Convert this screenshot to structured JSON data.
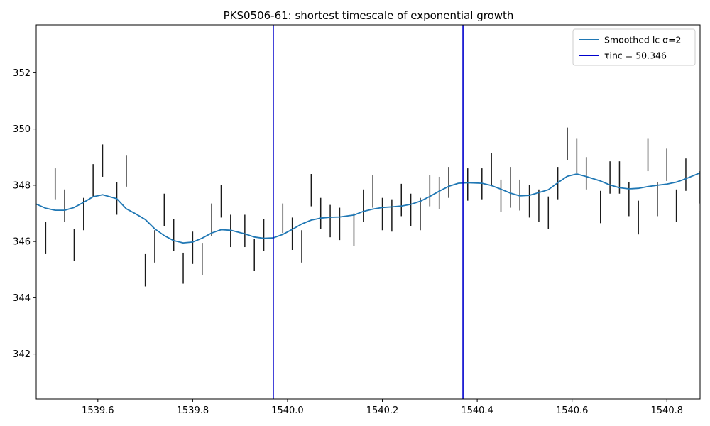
{
  "chart_data": {
    "type": "line",
    "title": "PKS0506-61: shortest timescale of exponential growth",
    "xlabel": "",
    "ylabel": "",
    "xlim": [
      1539.47,
      1540.87
    ],
    "ylim": [
      340.4,
      353.7
    ],
    "grid": false,
    "legend_position": "top-right",
    "x_ticks": [
      {
        "value": 1539.6,
        "label": "1539.6"
      },
      {
        "value": 1539.8,
        "label": "1539.8"
      },
      {
        "value": 1540.0,
        "label": "1540.0"
      },
      {
        "value": 1540.2,
        "label": "1540.2"
      },
      {
        "value": 1540.4,
        "label": "1540.4"
      },
      {
        "value": 1540.6,
        "label": "1540.6"
      },
      {
        "value": 1540.8,
        "label": "1540.8"
      }
    ],
    "y_ticks": [
      {
        "value": 342,
        "label": "342"
      },
      {
        "value": 344,
        "label": "344"
      },
      {
        "value": 346,
        "label": "346"
      },
      {
        "value": 348,
        "label": "348"
      },
      {
        "value": 350,
        "label": "350"
      },
      {
        "value": 352,
        "label": "352"
      }
    ],
    "legend": [
      {
        "label": "Smoothed lc σ=2",
        "color": "#1f77b4",
        "kind": "line"
      },
      {
        "label": "τinc = 50.346",
        "color": "#0000cd",
        "kind": "vline"
      }
    ],
    "smoothed_series": {
      "name": "Smoothed lc σ=2",
      "color": "#1f77b4",
      "x": [
        1539.47,
        1539.49,
        1539.51,
        1539.53,
        1539.55,
        1539.57,
        1539.59,
        1539.61,
        1539.64,
        1539.66,
        1539.68,
        1539.7,
        1539.72,
        1539.74,
        1539.76,
        1539.78,
        1539.8,
        1539.82,
        1539.84,
        1539.86,
        1539.88,
        1539.91,
        1539.93,
        1539.95,
        1539.97,
        1539.99,
        1540.01,
        1540.03,
        1540.05,
        1540.07,
        1540.09,
        1540.11,
        1540.14,
        1540.16,
        1540.18,
        1540.2,
        1540.22,
        1540.24,
        1540.26,
        1540.28,
        1540.3,
        1540.32,
        1540.34,
        1540.36,
        1540.38,
        1540.41,
        1540.43,
        1540.45,
        1540.47,
        1540.49,
        1540.51,
        1540.53,
        1540.55,
        1540.57,
        1540.59,
        1540.61,
        1540.63,
        1540.66,
        1540.68,
        1540.7,
        1540.72,
        1540.74,
        1540.76,
        1540.78,
        1540.8,
        1540.82,
        1540.84,
        1540.87
      ],
      "y": [
        347.33,
        347.18,
        347.11,
        347.11,
        347.21,
        347.39,
        347.59,
        347.66,
        347.52,
        347.16,
        346.98,
        346.78,
        346.45,
        346.21,
        346.03,
        345.95,
        345.98,
        346.12,
        346.3,
        346.42,
        346.4,
        346.27,
        346.16,
        346.11,
        346.13,
        346.25,
        346.43,
        346.62,
        346.76,
        346.83,
        346.86,
        346.87,
        346.94,
        347.07,
        347.15,
        347.21,
        347.23,
        347.26,
        347.32,
        347.43,
        347.6,
        347.79,
        347.96,
        348.07,
        348.09,
        348.07,
        347.99,
        347.86,
        347.72,
        347.62,
        347.64,
        347.74,
        347.84,
        348.09,
        348.32,
        348.4,
        348.31,
        348.15,
        348.01,
        347.91,
        347.87,
        347.89,
        347.95,
        348.0,
        348.04,
        348.11,
        348.23,
        348.44
      ]
    },
    "errorbars": {
      "color": "#1a1a1a",
      "x": [
        1539.49,
        1539.51,
        1539.53,
        1539.55,
        1539.57,
        1539.59,
        1539.61,
        1539.64,
        1539.66,
        1539.7,
        1539.72,
        1539.74,
        1539.76,
        1539.78,
        1539.8,
        1539.82,
        1539.84,
        1539.86,
        1539.88,
        1539.91,
        1539.93,
        1539.95,
        1539.99,
        1540.01,
        1540.03,
        1540.05,
        1540.07,
        1540.09,
        1540.11,
        1540.14,
        1540.16,
        1540.18,
        1540.2,
        1540.22,
        1540.24,
        1540.26,
        1540.28,
        1540.3,
        1540.32,
        1540.34,
        1540.38,
        1540.41,
        1540.43,
        1540.45,
        1540.47,
        1540.49,
        1540.51,
        1540.53,
        1540.55,
        1540.57,
        1540.59,
        1540.61,
        1540.63,
        1540.66,
        1540.68,
        1540.7,
        1540.72,
        1540.74,
        1540.76,
        1540.78,
        1540.8,
        1540.82,
        1540.84,
        1540.87
      ],
      "low": [
        345.55,
        347.5,
        346.7,
        345.3,
        346.4,
        347.6,
        348.3,
        346.95,
        347.95,
        344.4,
        345.25,
        346.55,
        345.65,
        344.5,
        345.2,
        344.8,
        346.2,
        346.85,
        345.8,
        345.8,
        344.95,
        345.65,
        346.3,
        345.7,
        345.25,
        347.25,
        346.45,
        346.15,
        346.05,
        345.85,
        346.7,
        347.2,
        346.4,
        346.35,
        346.9,
        346.55,
        346.4,
        347.25,
        347.15,
        347.55,
        347.45,
        347.5,
        348.0,
        347.05,
        347.2,
        347.1,
        346.85,
        346.7,
        346.45,
        347.5,
        348.9,
        348.45,
        347.85,
        346.65,
        347.7,
        347.7,
        346.9,
        346.25,
        348.5,
        346.9,
        348.15,
        346.7,
        347.8,
        347.35
      ],
      "high": [
        346.7,
        348.6,
        347.85,
        346.45,
        347.55,
        348.75,
        349.45,
        348.1,
        349.05,
        345.55,
        346.4,
        347.7,
        346.8,
        345.6,
        346.35,
        345.95,
        347.35,
        348.0,
        346.95,
        346.95,
        346.1,
        346.8,
        347.35,
        346.85,
        346.4,
        348.4,
        347.55,
        347.3,
        347.2,
        347.0,
        347.85,
        348.35,
        347.55,
        347.5,
        348.05,
        347.7,
        347.55,
        348.35,
        348.3,
        348.65,
        348.6,
        348.6,
        349.15,
        348.2,
        348.65,
        348.2,
        348.0,
        347.85,
        347.6,
        348.65,
        350.05,
        349.65,
        349.0,
        347.8,
        348.85,
        348.85,
        348.1,
        347.45,
        349.65,
        348.1,
        349.3,
        347.85,
        348.95,
        348.5
      ]
    },
    "vlines": [
      {
        "x": 1539.97,
        "color": "#0000cd"
      },
      {
        "x": 1540.37,
        "color": "#0000cd"
      }
    ]
  }
}
